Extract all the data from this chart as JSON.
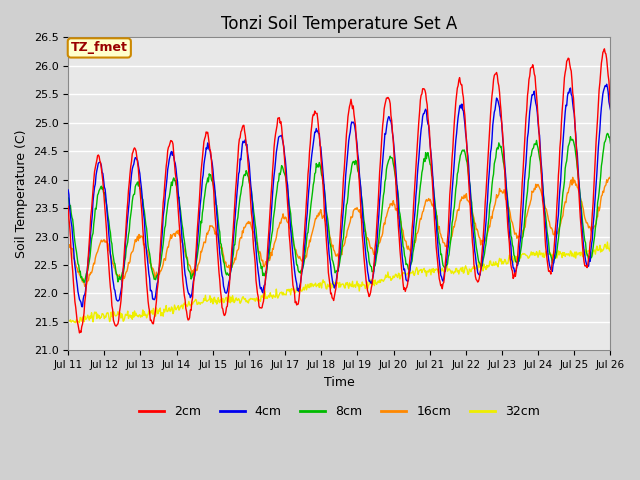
{
  "title": "Tonzi Soil Temperature Set A",
  "xlabel": "Time",
  "ylabel": "Soil Temperature (C)",
  "ylim": [
    21.0,
    26.5
  ],
  "annotation_text": "TZ_fmet",
  "annotation_facecolor": "#ffffcc",
  "annotation_edgecolor": "#cc8800",
  "annotation_textcolor": "#990000",
  "fig_facecolor": "#d0d0d0",
  "plot_facecolor": "#e8e8e8",
  "legend_entries": [
    "2cm",
    "4cm",
    "8cm",
    "16cm",
    "32cm"
  ],
  "legend_colors": [
    "#ff0000",
    "#0000ee",
    "#00bb00",
    "#ff8800",
    "#eeee00"
  ],
  "tick_labels": [
    "Jul 11",
    "Jul 12",
    "Jul 13",
    "Jul 14",
    "Jul 15",
    "Jul 16",
    "Jul 17",
    "Jul 18",
    "Jul 19",
    "Jul 20",
    "Jul 21",
    "Jul 22",
    "Jul 23",
    "Jul 24",
    "Jul 25",
    "Jul 26"
  ],
  "grid_color": "#ffffff",
  "title_fontsize": 12
}
